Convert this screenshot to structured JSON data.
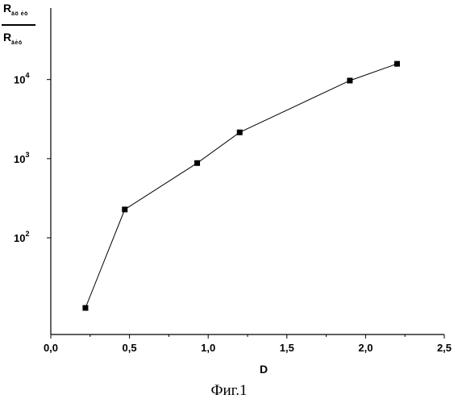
{
  "chart_data": {
    "type": "line",
    "x": [
      0.22,
      0.47,
      0.93,
      1.2,
      1.9,
      2.2
    ],
    "series": [
      {
        "values": [
          13,
          228,
          880,
          2150,
          9700,
          15800
        ]
      }
    ],
    "xlabel": "D",
    "ylabel": {
      "numerator": "R",
      "numerator_sub": "äö ėö",
      "denominator": "R",
      "denominator_sub": "äėö"
    },
    "xlim": [
      0,
      2.5
    ],
    "ylim": [
      6,
      80000
    ],
    "y_scale": "log",
    "x_ticks": [
      "0,0",
      "0,5",
      "1,0",
      "1,5",
      "2,0",
      "2,5"
    ],
    "y_ticks": [
      {
        "base": "10",
        "exp": "2",
        "value": 100
      },
      {
        "base": "10",
        "exp": "3",
        "value": 1000
      },
      {
        "base": "10",
        "exp": "4",
        "value": 10000
      }
    ],
    "grid": false,
    "marker": "square",
    "color": "#000000"
  },
  "caption": "Фиг.1"
}
